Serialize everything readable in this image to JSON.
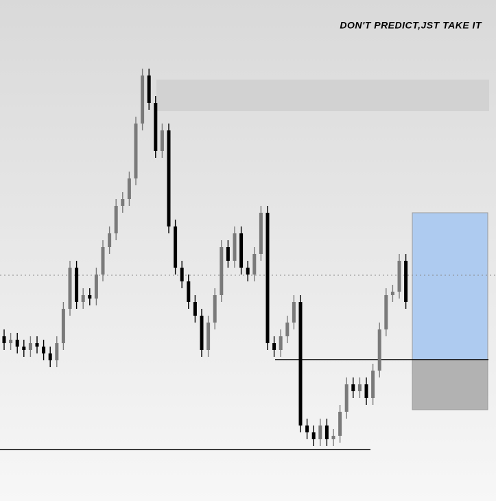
{
  "chart_data": {
    "type": "candlestick",
    "title": "DON'T PREDICT,JST TAKE IT",
    "open": [
      240,
      230,
      235,
      225,
      220,
      230,
      225,
      215,
      205,
      230,
      280,
      340,
      290,
      300,
      295,
      330,
      370,
      390,
      430,
      440,
      470,
      550,
      620,
      580,
      510,
      540,
      400,
      340,
      320,
      290,
      270,
      220,
      260,
      300,
      370,
      350,
      390,
      340,
      330,
      360,
      420,
      230,
      220,
      240,
      260,
      290,
      110,
      100,
      90,
      110,
      90,
      95,
      130,
      170,
      160,
      170,
      150,
      190,
      250,
      300,
      305,
      350
    ],
    "high": [
      250,
      245,
      245,
      235,
      240,
      240,
      235,
      225,
      240,
      290,
      350,
      350,
      310,
      310,
      340,
      380,
      400,
      440,
      450,
      480,
      560,
      630,
      630,
      590,
      550,
      550,
      410,
      350,
      330,
      300,
      280,
      270,
      310,
      380,
      380,
      400,
      400,
      350,
      370,
      430,
      430,
      240,
      250,
      270,
      300,
      300,
      120,
      110,
      120,
      120,
      105,
      140,
      180,
      180,
      180,
      180,
      200,
      260,
      310,
      315,
      360,
      360
    ],
    "low": [
      220,
      220,
      215,
      210,
      210,
      215,
      205,
      195,
      195,
      220,
      270,
      280,
      280,
      285,
      285,
      320,
      360,
      380,
      420,
      430,
      460,
      540,
      570,
      500,
      500,
      390,
      330,
      310,
      280,
      260,
      210,
      210,
      250,
      290,
      340,
      340,
      330,
      320,
      320,
      350,
      220,
      210,
      210,
      230,
      250,
      100,
      90,
      80,
      80,
      80,
      80,
      85,
      120,
      150,
      150,
      140,
      140,
      180,
      240,
      290,
      295,
      280
    ],
    "close": [
      230,
      235,
      225,
      220,
      230,
      225,
      215,
      205,
      230,
      280,
      340,
      290,
      300,
      295,
      330,
      370,
      390,
      430,
      440,
      470,
      550,
      620,
      580,
      510,
      540,
      400,
      340,
      320,
      290,
      270,
      220,
      260,
      300,
      370,
      350,
      390,
      340,
      330,
      360,
      420,
      230,
      220,
      240,
      260,
      290,
      110,
      100,
      90,
      110,
      90,
      95,
      130,
      170,
      160,
      170,
      150,
      190,
      250,
      300,
      305,
      350,
      290
    ],
    "up_color": "#7a7a7a",
    "down_color": "#000000",
    "ylim": [
      0,
      730
    ],
    "zones": [
      {
        "range": [
          568,
          614
        ],
        "color": "#d2d2d2"
      },
      {
        "range": [
          206,
          420
        ],
        "color": "#aecbf0"
      },
      {
        "range": [
          133,
          206
        ],
        "color": "#b2b2b2"
      }
    ],
    "lines": [
      {
        "value": 206,
        "style": "solid"
      },
      {
        "value": 75,
        "style": "solid"
      },
      {
        "value": 329,
        "style": "dotted"
      }
    ]
  }
}
